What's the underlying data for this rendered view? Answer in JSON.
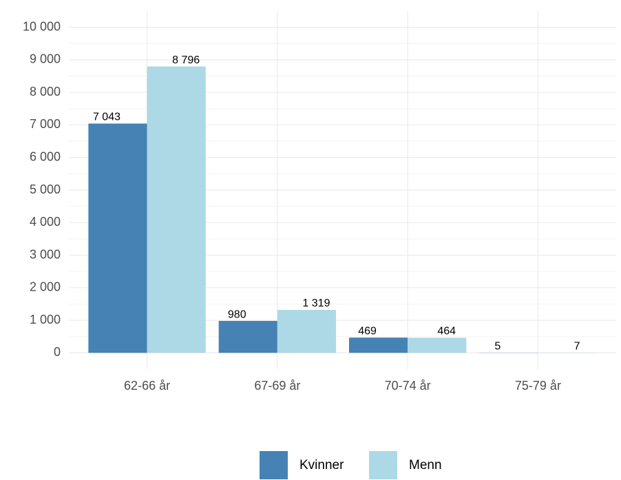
{
  "chart_data": {
    "type": "bar",
    "categories": [
      "62-66 år",
      "67-69 år",
      "70-74 år",
      "75-79 år"
    ],
    "series": [
      {
        "name": "Kvinner",
        "color": "#4682b4",
        "values": [
          7043,
          980,
          469,
          5
        ],
        "value_labels": [
          "7 043",
          "980",
          "469",
          "5"
        ]
      },
      {
        "name": "Menn",
        "color": "#add8e6",
        "values": [
          8796,
          1319,
          464,
          7
        ],
        "value_labels": [
          "8 796",
          "1 319",
          "464",
          "7"
        ]
      }
    ],
    "ylim": [
      -500,
      10500
    ],
    "yticks": [
      0,
      {
        "value": 1000,
        "label": "1 000"
      },
      {
        "value": 2000,
        "label": "2 000"
      },
      {
        "value": 3000,
        "label": "3 000"
      },
      {
        "value": 4000,
        "label": "4 000"
      },
      {
        "value": 5000,
        "label": "5 000"
      },
      {
        "value": 6000,
        "label": "6 000"
      },
      {
        "value": 7000,
        "label": "7 000"
      },
      {
        "value": 8000,
        "label": "8 000"
      },
      {
        "value": 9000,
        "label": "9 000"
      },
      {
        "value": 10000,
        "label": "10 000"
      }
    ],
    "grid": true,
    "legend": "bottom"
  }
}
